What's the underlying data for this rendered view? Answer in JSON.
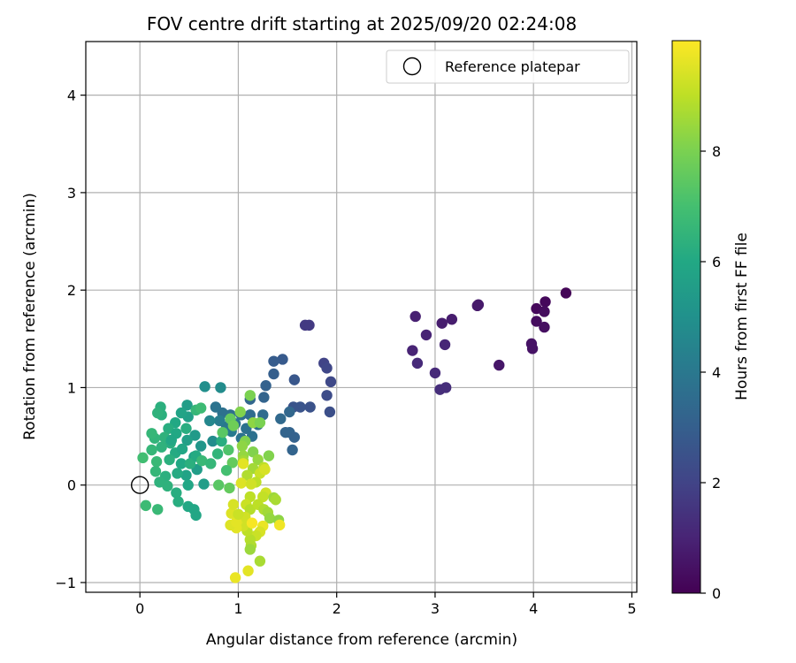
{
  "chart_data": {
    "type": "scatter",
    "title": "FOV centre drift starting at 2025/09/20 02:24:08",
    "xlabel": "Angular distance from reference (arcmin)",
    "ylabel": "Rotation from reference (arcmin)",
    "xlim": [
      -0.55,
      5.05
    ],
    "ylim": [
      -1.1,
      4.55
    ],
    "xticks": [
      0,
      1,
      2,
      3,
      4,
      5
    ],
    "yticks": [
      -1,
      0,
      1,
      2,
      3,
      4
    ],
    "grid": true,
    "legend": {
      "placement": "upper-right",
      "entries": [
        "Reference platepar"
      ]
    },
    "reference_point": {
      "x": 0,
      "y": 0,
      "label": "Reference platepar"
    },
    "colorbar": {
      "label": "Hours from first FF file",
      "colormap": "viridis",
      "range": [
        0,
        10
      ],
      "ticks": [
        0,
        2,
        4,
        6,
        8
      ]
    },
    "points": [
      [
        4.33,
        1.97,
        0.1
      ],
      [
        4.12,
        1.88,
        0.2
      ],
      [
        4.03,
        1.81,
        0.2
      ],
      [
        4.11,
        1.78,
        0.3
      ],
      [
        4.03,
        1.68,
        0.3
      ],
      [
        4.11,
        1.62,
        0.4
      ],
      [
        3.98,
        1.45,
        0.5
      ],
      [
        3.99,
        1.4,
        0.5
      ],
      [
        3.65,
        1.23,
        0.6
      ],
      [
        3.44,
        1.85,
        0.7
      ],
      [
        3.43,
        1.84,
        0.7
      ],
      [
        3.17,
        1.7,
        0.8
      ],
      [
        3.07,
        1.66,
        0.8
      ],
      [
        2.8,
        1.73,
        0.9
      ],
      [
        2.91,
        1.54,
        1.0
      ],
      [
        2.77,
        1.38,
        1.0
      ],
      [
        3.1,
        1.44,
        1.1
      ],
      [
        2.82,
        1.25,
        1.2
      ],
      [
        3.0,
        1.15,
        1.2
      ],
      [
        3.11,
        1.0,
        1.3
      ],
      [
        3.05,
        0.98,
        1.3
      ],
      [
        1.68,
        1.64,
        1.7
      ],
      [
        1.72,
        1.64,
        1.7
      ],
      [
        1.87,
        1.25,
        2.0
      ],
      [
        1.9,
        1.2,
        2.1
      ],
      [
        1.94,
        1.06,
        2.2
      ],
      [
        1.9,
        0.92,
        2.3
      ],
      [
        1.93,
        0.75,
        2.4
      ],
      [
        1.73,
        0.8,
        2.5
      ],
      [
        1.63,
        0.8,
        2.6
      ],
      [
        1.56,
        0.8,
        2.6
      ],
      [
        1.57,
        1.08,
        2.7
      ],
      [
        1.45,
        1.29,
        2.8
      ],
      [
        1.36,
        1.27,
        2.9
      ],
      [
        1.36,
        1.14,
        3.0
      ],
      [
        1.28,
        1.02,
        3.1
      ],
      [
        1.26,
        0.9,
        3.2
      ],
      [
        1.12,
        0.88,
        3.3
      ],
      [
        1.52,
        0.75,
        3.3
      ],
      [
        1.43,
        0.68,
        3.4
      ],
      [
        1.25,
        0.72,
        3.5
      ],
      [
        1.12,
        0.72,
        3.5
      ],
      [
        1.03,
        0.72,
        3.6
      ],
      [
        0.92,
        0.72,
        3.6
      ],
      [
        0.84,
        0.74,
        3.7
      ],
      [
        0.77,
        0.8,
        3.8
      ],
      [
        1.52,
        0.54,
        3.2
      ],
      [
        1.57,
        0.49,
        3.1
      ],
      [
        1.48,
        0.54,
        3.2
      ],
      [
        1.55,
        0.36,
        3.2
      ],
      [
        1.2,
        0.62,
        3.6
      ],
      [
        1.08,
        0.58,
        3.7
      ],
      [
        0.97,
        0.63,
        3.8
      ],
      [
        0.88,
        0.6,
        4.0
      ],
      [
        1.14,
        0.5,
        3.7
      ],
      [
        1.03,
        0.48,
        3.8
      ],
      [
        0.93,
        0.55,
        4.1
      ],
      [
        0.81,
        0.66,
        4.2
      ],
      [
        0.71,
        0.66,
        4.6
      ],
      [
        0.66,
        1.01,
        4.9
      ],
      [
        0.82,
        1.0,
        4.8
      ],
      [
        0.74,
        0.45,
        4.8
      ],
      [
        0.62,
        0.4,
        5.2
      ],
      [
        0.56,
        0.51,
        5.4
      ],
      [
        0.48,
        0.46,
        5.6
      ],
      [
        0.49,
        0.7,
        5.6
      ],
      [
        0.48,
        0.82,
        5.5
      ],
      [
        0.42,
        0.74,
        5.8
      ],
      [
        0.36,
        0.64,
        6.0
      ],
      [
        0.29,
        0.58,
        6.2
      ],
      [
        0.22,
        0.72,
        6.3
      ],
      [
        0.25,
        0.49,
        6.4
      ],
      [
        0.15,
        0.48,
        6.5
      ],
      [
        0.12,
        0.53,
        6.6
      ],
      [
        0.31,
        0.43,
        6.2
      ],
      [
        0.36,
        0.33,
        6.1
      ],
      [
        0.22,
        0.39,
        6.4
      ],
      [
        0.12,
        0.36,
        6.6
      ],
      [
        0.17,
        0.24,
        6.7
      ],
      [
        0.3,
        0.26,
        6.3
      ],
      [
        0.42,
        0.22,
        6.0
      ],
      [
        0.55,
        0.29,
        5.6
      ],
      [
        0.58,
        0.16,
        5.5
      ],
      [
        0.47,
        0.1,
        5.8
      ],
      [
        0.38,
        0.12,
        6.1
      ],
      [
        0.26,
        0.09,
        6.3
      ],
      [
        0.2,
        0.03,
        6.4
      ],
      [
        0.28,
        -0.01,
        6.4
      ],
      [
        0.37,
        -0.08,
        6.2
      ],
      [
        0.39,
        -0.17,
        6.2
      ],
      [
        0.49,
        -0.22,
        6.0
      ],
      [
        0.55,
        -0.25,
        5.9
      ],
      [
        0.57,
        -0.31,
        5.9
      ],
      [
        0.49,
        0.0,
        5.9
      ],
      [
        0.65,
        0.01,
        5.5
      ],
      [
        0.06,
        -0.21,
        6.8
      ],
      [
        0.18,
        -0.25,
        6.7
      ],
      [
        0.03,
        0.28,
        6.9
      ],
      [
        0.16,
        0.14,
        6.6
      ],
      [
        0.21,
        0.8,
        6.3
      ],
      [
        0.18,
        0.74,
        6.4
      ],
      [
        0.57,
        0.77,
        6.6
      ],
      [
        0.62,
        0.79,
        6.8
      ],
      [
        0.47,
        0.58,
        6.2
      ],
      [
        0.37,
        0.53,
        6.0
      ],
      [
        0.32,
        0.46,
        5.9
      ],
      [
        0.43,
        0.37,
        5.9
      ],
      [
        0.51,
        0.22,
        6.3
      ],
      [
        0.57,
        0.3,
        6.1
      ],
      [
        0.63,
        0.25,
        6.7
      ],
      [
        0.72,
        0.22,
        6.6
      ],
      [
        0.79,
        0.32,
        6.5
      ],
      [
        0.83,
        0.45,
        6.2
      ],
      [
        0.84,
        0.54,
        7.4
      ],
      [
        0.92,
        0.68,
        7.6
      ],
      [
        0.95,
        0.61,
        7.8
      ],
      [
        0.9,
        0.36,
        7.2
      ],
      [
        0.94,
        0.23,
        7.6
      ],
      [
        0.88,
        0.15,
        7.0
      ],
      [
        0.8,
        0.0,
        7.4
      ],
      [
        0.91,
        -0.03,
        7.6
      ],
      [
        1.02,
        0.75,
        8.1
      ],
      [
        1.12,
        0.92,
        8.0
      ],
      [
        1.15,
        0.64,
        8.3
      ],
      [
        1.22,
        0.64,
        8.0
      ],
      [
        1.07,
        0.45,
        8.1
      ],
      [
        1.04,
        0.4,
        8.3
      ],
      [
        1.15,
        0.34,
        8.1
      ],
      [
        1.05,
        0.3,
        8.4
      ],
      [
        1.05,
        0.25,
        8.6
      ],
      [
        1.2,
        0.26,
        8.4
      ],
      [
        1.31,
        0.3,
        8.1
      ],
      [
        1.15,
        0.17,
        8.6
      ],
      [
        1.09,
        0.1,
        8.8
      ],
      [
        1.26,
        0.18,
        9.0
      ],
      [
        1.22,
        0.12,
        9.2
      ],
      [
        1.27,
        0.16,
        9.4
      ],
      [
        1.18,
        0.03,
        9.0
      ],
      [
        1.28,
        -0.08,
        9.3
      ],
      [
        1.25,
        -0.12,
        9.1
      ],
      [
        1.36,
        -0.13,
        8.5
      ],
      [
        1.38,
        -0.15,
        8.7
      ],
      [
        1.03,
        0.02,
        9.5
      ],
      [
        1.05,
        0.22,
        9.6
      ],
      [
        1.13,
        0.01,
        9.3
      ],
      [
        1.12,
        -0.12,
        9.0
      ],
      [
        1.08,
        -0.2,
        9.2
      ],
      [
        1.12,
        -0.25,
        8.9
      ],
      [
        1.2,
        -0.2,
        9.0
      ],
      [
        1.26,
        -0.25,
        8.8
      ],
      [
        1.3,
        -0.28,
        8.6
      ],
      [
        1.32,
        -0.34,
        8.4
      ],
      [
        1.41,
        -0.36,
        8.3
      ],
      [
        1.42,
        -0.41,
        9.8
      ],
      [
        1.25,
        -0.42,
        9.7
      ],
      [
        1.22,
        -0.48,
        9.4
      ],
      [
        1.18,
        -0.52,
        9.2
      ],
      [
        1.12,
        -0.56,
        8.9
      ],
      [
        1.09,
        -0.47,
        9.0
      ],
      [
        1.05,
        -0.42,
        9.3
      ],
      [
        0.98,
        -0.44,
        9.6
      ],
      [
        0.92,
        -0.41,
        9.5
      ],
      [
        0.93,
        -0.29,
        9.5
      ],
      [
        1.0,
        -0.36,
        9.4
      ],
      [
        1.07,
        -0.33,
        9.3
      ],
      [
        1.13,
        -0.62,
        8.8
      ],
      [
        1.12,
        -0.66,
        8.5
      ],
      [
        1.22,
        -0.78,
        8.7
      ],
      [
        1.1,
        -0.88,
        9.6
      ],
      [
        0.97,
        -0.95,
        9.7
      ],
      [
        1.14,
        -0.39,
        9.9
      ],
      [
        0.98,
        -0.38,
        9.6
      ],
      [
        1.0,
        -0.3,
        9.2
      ],
      [
        0.95,
        -0.2,
        9.4
      ]
    ]
  }
}
